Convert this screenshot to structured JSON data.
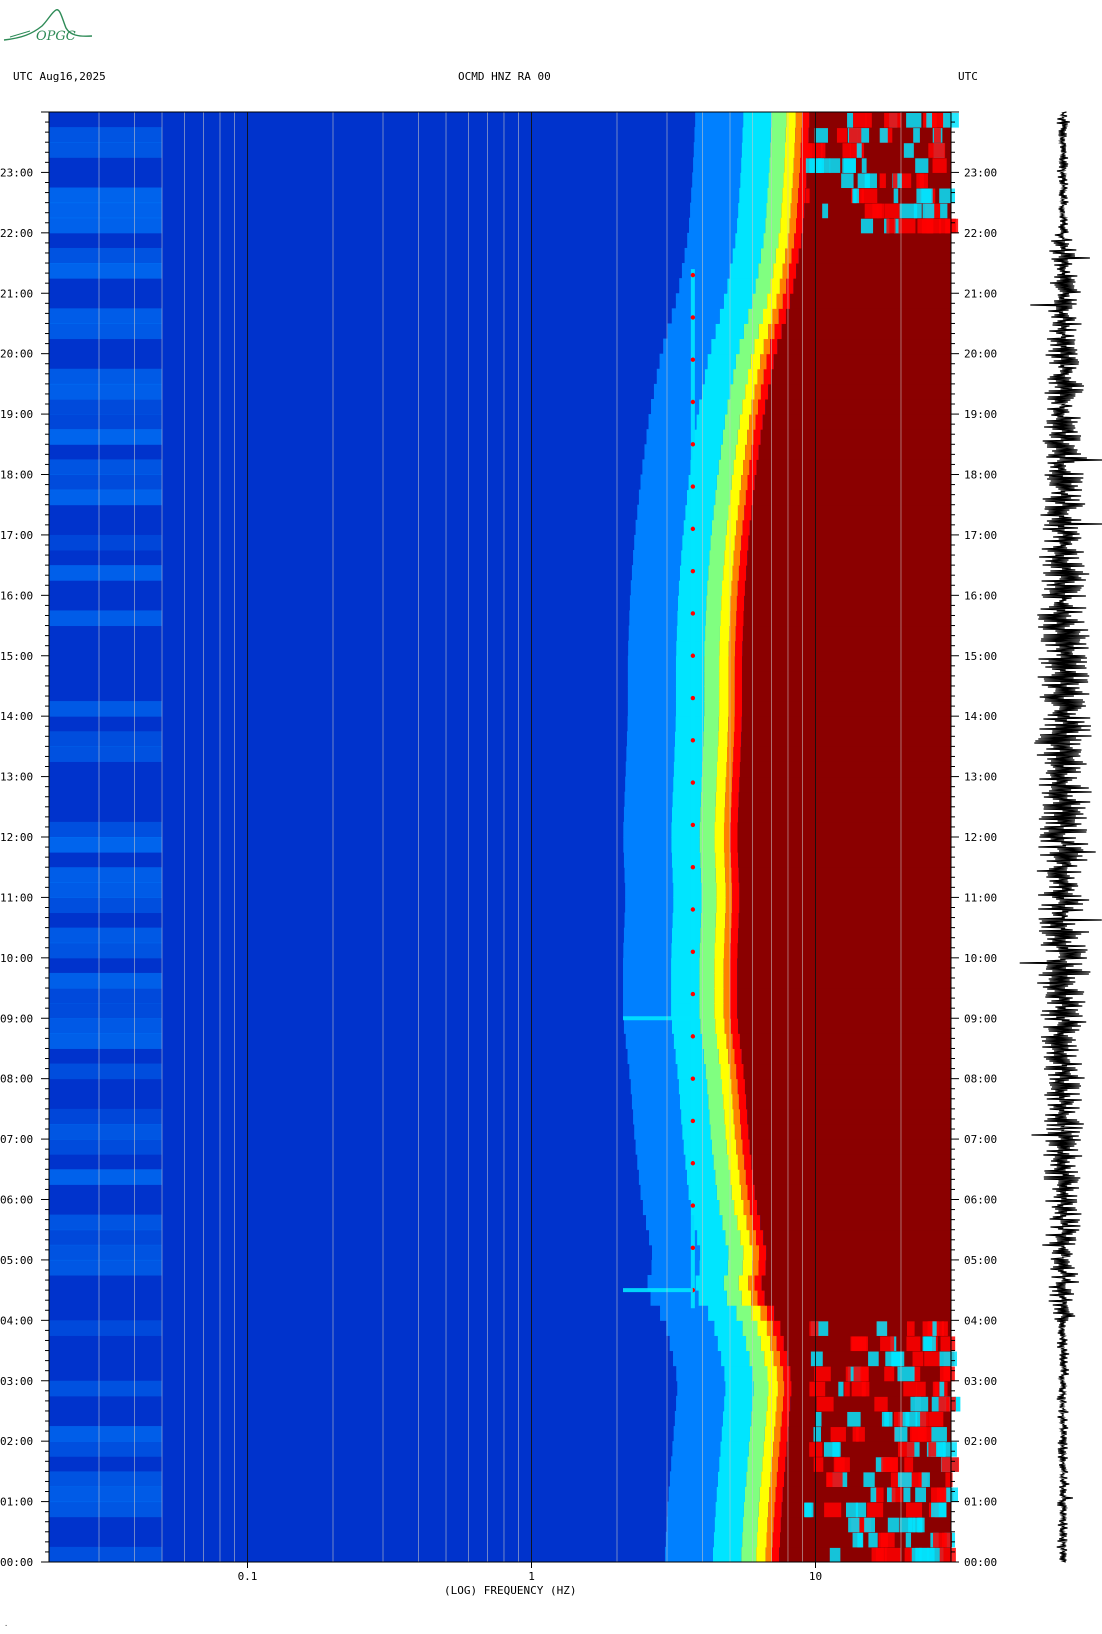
{
  "header": {
    "left_text": "UTC  Aug16,2025",
    "center_text": "OCMD HNZ RA 00",
    "right_text": "UTC"
  },
  "logo": {
    "text": "OPGC",
    "color": "#2e8b57"
  },
  "footer": {
    "mark": "."
  },
  "chart_data": {
    "type": "heatmap",
    "title": "OCMD HNZ RA 00",
    "date": "Aug16,2025",
    "timezone_label": "UTC",
    "xlabel": "(LOG) FREQUENCY (HZ)",
    "xscale": "log",
    "xlim": [
      0.02,
      30
    ],
    "x_ticks": [
      {
        "value": 0.1,
        "label": "0.1"
      },
      {
        "value": 1,
        "label": "1"
      },
      {
        "value": 10,
        "label": "10"
      }
    ],
    "ylim_hours": [
      0,
      24
    ],
    "y_ticks": [
      {
        "hour": 0,
        "label": "00:00"
      },
      {
        "hour": 1,
        "label": "01:00"
      },
      {
        "hour": 2,
        "label": "02:00"
      },
      {
        "hour": 3,
        "label": "03:00"
      },
      {
        "hour": 4,
        "label": "04:00"
      },
      {
        "hour": 5,
        "label": "05:00"
      },
      {
        "hour": 6,
        "label": "06:00"
      },
      {
        "hour": 7,
        "label": "07:00"
      },
      {
        "hour": 8,
        "label": "08:00"
      },
      {
        "hour": 9,
        "label": "09:00"
      },
      {
        "hour": 10,
        "label": "10:00"
      },
      {
        "hour": 11,
        "label": "11:00"
      },
      {
        "hour": 12,
        "label": "12:00"
      },
      {
        "hour": 13,
        "label": "13:00"
      },
      {
        "hour": 14,
        "label": "14:00"
      },
      {
        "hour": 15,
        "label": "15:00"
      },
      {
        "hour": 16,
        "label": "16:00"
      },
      {
        "hour": 17,
        "label": "17:00"
      },
      {
        "hour": 18,
        "label": "18:00"
      },
      {
        "hour": 19,
        "label": "19:00"
      },
      {
        "hour": 20,
        "label": "20:00"
      },
      {
        "hour": 21,
        "label": "21:00"
      },
      {
        "hour": 22,
        "label": "22:00"
      },
      {
        "hour": 23,
        "label": "23:00"
      }
    ],
    "colormap": [
      "#00008b",
      "#0033cc",
      "#0080ff",
      "#00e5ff",
      "#80ff80",
      "#ffff00",
      "#ff8000",
      "#ff0000",
      "#8b0000"
    ],
    "noise_edge_hz": [
      {
        "hour": 0.0,
        "hz": 7.0
      },
      {
        "hour": 1.0,
        "hz": 7.2
      },
      {
        "hour": 2.0,
        "hz": 7.5
      },
      {
        "hour": 3.0,
        "hz": 7.8
      },
      {
        "hour": 4.0,
        "hz": 7.0
      },
      {
        "hour": 4.5,
        "hz": 6.0
      },
      {
        "hour": 5.0,
        "hz": 6.4
      },
      {
        "hour": 6.0,
        "hz": 5.8
      },
      {
        "hour": 7.0,
        "hz": 5.5
      },
      {
        "hour": 8.0,
        "hz": 5.3
      },
      {
        "hour": 9.0,
        "hz": 5.0
      },
      {
        "hour": 10.0,
        "hz": 5.0
      },
      {
        "hour": 11.0,
        "hz": 5.1
      },
      {
        "hour": 12.0,
        "hz": 5.0
      },
      {
        "hour": 13.0,
        "hz": 5.1
      },
      {
        "hour": 14.0,
        "hz": 5.2
      },
      {
        "hour": 15.0,
        "hz": 5.2
      },
      {
        "hour": 16.0,
        "hz": 5.3
      },
      {
        "hour": 17.0,
        "hz": 5.5
      },
      {
        "hour": 18.0,
        "hz": 5.8
      },
      {
        "hour": 19.0,
        "hz": 6.2
      },
      {
        "hour": 20.0,
        "hz": 6.8
      },
      {
        "hour": 21.0,
        "hz": 7.8
      },
      {
        "hour": 22.0,
        "hz": 8.5
      },
      {
        "hour": 23.0,
        "hz": 8.8
      },
      {
        "hour": 24.0,
        "hz": 9.0
      }
    ],
    "saturated_interval_hours": [
      4.0,
      22.0
    ],
    "tonal_line_hz": 3.7,
    "broadband_event_hours": [
      9.0,
      4.5
    ],
    "seismogram": {
      "type": "trace",
      "quiet_hours": [
        [
          0,
          4
        ],
        [
          22,
          24
        ]
      ],
      "active_hours": [
        4,
        22
      ]
    }
  }
}
